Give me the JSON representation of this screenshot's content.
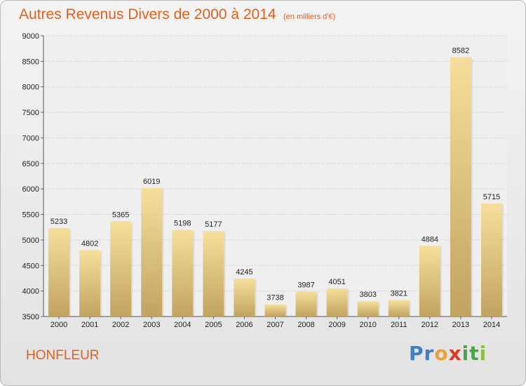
{
  "title": {
    "main": "Autres Revenus Divers de 2000 à 2014",
    "sub": "(en milliers d'€)"
  },
  "city": "HONFLEUR",
  "logo": {
    "letters": [
      "P",
      "r",
      "o",
      "x",
      "i",
      "t",
      "i"
    ],
    "colors": [
      "#3f7fc4",
      "#3f7fc4",
      "#e8a23b",
      "#d93b2b",
      "#49a34a",
      "#49a34a",
      "#8bbf3f"
    ]
  },
  "colors": {
    "title": "#e0601e",
    "bar_top": "#f6df9c",
    "bar_bottom": "#c2a360"
  },
  "chart_data": {
    "type": "bar",
    "categories": [
      "2000",
      "2001",
      "2002",
      "2003",
      "2004",
      "2005",
      "2006",
      "2007",
      "2008",
      "2009",
      "2010",
      "2011",
      "2012",
      "2013",
      "2014"
    ],
    "values": [
      5233,
      4802,
      5365,
      6019,
      5198,
      5177,
      4245,
      3738,
      3987,
      4051,
      3803,
      3821,
      4884,
      8582,
      5715
    ],
    "ylim": [
      3500,
      9000
    ],
    "yticks": [
      3500,
      4000,
      4500,
      5000,
      5500,
      6000,
      6500,
      7000,
      7500,
      8000,
      8500,
      9000
    ],
    "grid": true,
    "xlabel": "",
    "ylabel": ""
  }
}
